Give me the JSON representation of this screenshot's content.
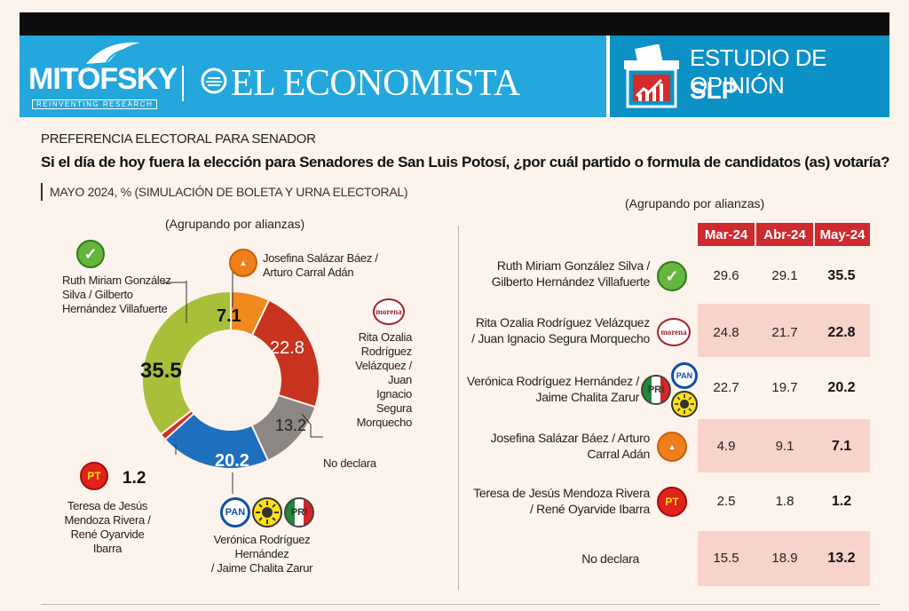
{
  "header": {
    "brand1": "MITOFSKY",
    "brand1_tagline": "REINVENTING RESEARCH",
    "brand2": "EL ECONOMISTA",
    "study_title": "ESTUDIO DE OPINIÓN",
    "study_region": "SLP"
  },
  "subtitle": "PREFERENCIA ELECTORAL PARA SENADOR",
  "question": "Si el día de hoy fuera la elección para Senadores de San Luis Potosí, ¿por cuál partido o formula de candidatos (as) votaría?",
  "meta": "MAYO 2024, % (SIMULACIÓN DE BOLETA Y URNA ELECTORAL)",
  "grouping_note": "(Agrupando por alianzas)",
  "colors": {
    "verde": "#a9bf3a",
    "mc": "#ef8a1f",
    "morena": "#c7331f",
    "no_declara": "#8c8684",
    "pan_alianza": "#1f6fbf",
    "pt": "#d52b2b"
  },
  "chart_data": [
    {
      "type": "pie",
      "donut": true,
      "slices": [
        {
          "label": "Ruth Miriam González Silva / Gilberto Hernández Villafuerte",
          "value": 35.5,
          "value_label": "35.5",
          "color": "#a9bf3a",
          "parties": [
            "verde"
          ]
        },
        {
          "label": "Josefina Salázar Báez / Arturo Carral Adán",
          "value": 7.1,
          "value_label": "7.1",
          "color": "#ef8a1f",
          "parties": [
            "mc"
          ]
        },
        {
          "label": "Rita Ozalia Rodríguez Velázquez / Juan Ignacio Segura Morquecho",
          "value": 22.8,
          "value_label": "22.8",
          "color": "#c7331f",
          "parties": [
            "morena"
          ]
        },
        {
          "label": "No declara",
          "value": 13.2,
          "value_label": "13.2",
          "color": "#8c8684",
          "parties": []
        },
        {
          "label": "Verónica Rodríguez Hernández / Jaime Chalita Zarur",
          "value": 20.2,
          "value_label": "20.2",
          "color": "#1f6fbf",
          "parties": [
            "pan",
            "prd",
            "pri"
          ]
        },
        {
          "label": "Teresa de Jesús Mendoza Rivera / René Oyarvide Ibarra",
          "value": 1.2,
          "value_label": "1.2",
          "color": "#d52b2b",
          "parties": [
            "pt"
          ]
        }
      ]
    },
    {
      "type": "table",
      "columns": [
        "Mar-24",
        "Abr-24",
        "May-24"
      ],
      "rows": [
        {
          "name_line1": "Ruth Miriam González Silva /",
          "name_line2": "Gilberto Hernández Villafuerte",
          "values": [
            "29.6",
            "29.1",
            "35.5"
          ],
          "parties": [
            "verde"
          ]
        },
        {
          "name_line1": "Rita Ozalia Rodríguez Velázquez",
          "name_line2": "/ Juan Ignacio Segura Morquecho",
          "values": [
            "24.8",
            "21.7",
            "22.8"
          ],
          "parties": [
            "morena"
          ]
        },
        {
          "name_line1": "Verónica Rodríguez Hernández /",
          "name_line2": "Jaime Chalita Zarur",
          "values": [
            "22.7",
            "19.7",
            "20.2"
          ],
          "parties": [
            "pri",
            "pan",
            "prd"
          ]
        },
        {
          "name_line1": "Josefina Salázar Báez / Arturo",
          "name_line2": "Carral Adán",
          "values": [
            "4.9",
            "9.1",
            "7.1"
          ],
          "parties": [
            "mc"
          ]
        },
        {
          "name_line1": "Teresa de Jesús Mendoza Rivera",
          "name_line2": "/ René Oyarvide Ibarra",
          "values": [
            "2.5",
            "1.8",
            "1.2"
          ],
          "parties": [
            "pt"
          ]
        },
        {
          "name_line1": "No declara",
          "name_line2": "",
          "values": [
            "15.5",
            "18.9",
            "13.2"
          ],
          "parties": []
        }
      ]
    }
  ],
  "donut_labels": {
    "verde": [
      "Ruth Miriam González",
      "Silva / Gilberto",
      "Hernández Villafuerte"
    ],
    "mc": [
      "Josefina Salázar Báez /",
      "Arturo Carral Adán"
    ],
    "morena": [
      "Rita Ozalia",
      "Rodríguez",
      "Velázquez / Juan",
      "Ignacio Segura",
      "Morquecho"
    ],
    "no_declara": [
      "No declara"
    ],
    "pan": [
      "Verónica Rodríguez Hernández",
      "/ Jaime Chalita Zarur"
    ],
    "pt": [
      "Teresa de Jesús",
      "Mendoza Rivera /",
      "René Oyarvide Ibarra"
    ]
  },
  "party_logos": {
    "pt": "PT",
    "pan": "PAN",
    "pri": "PRI",
    "morena": "morena"
  }
}
